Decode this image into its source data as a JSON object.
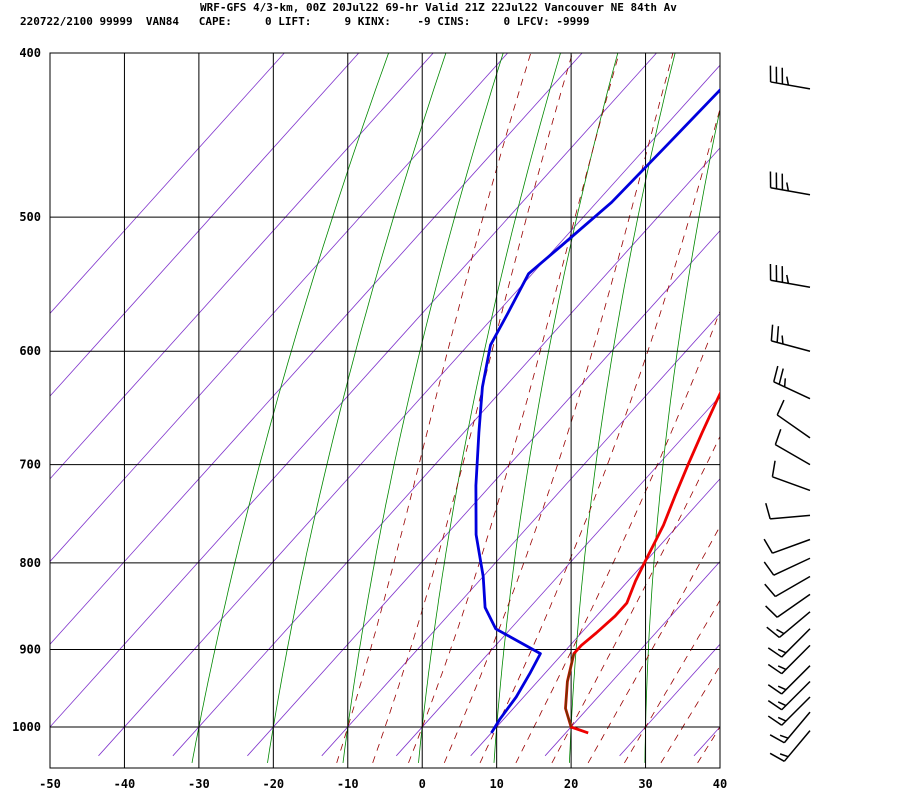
{
  "header": {
    "line1": "WRF-GFS 4/3-km, 00Z 20Jul22 69-hr Valid 21Z 22Jul22 Vancouver NE 84th Av",
    "line2": "220722/2100 99999  VAN84   CAPE:     0 LIFT:     9 KINX:    -9 CINS:     0 LFCV: -9999"
  },
  "chart_data": {
    "type": "line",
    "title": "WRF-GFS 4/3-km, 00Z 20Jul22 69-hr Valid 21Z 22Jul22 Vancouver NE 84th Av",
    "xlabel": "",
    "ylabel": "",
    "xlim": [
      -50,
      40
    ],
    "ylim": [
      1040,
      400
    ],
    "x_ticks": [
      -50,
      -40,
      -30,
      -20,
      -10,
      0,
      10,
      20,
      30,
      40
    ],
    "y_ticks": [
      400,
      500,
      600,
      700,
      800,
      900,
      1000
    ],
    "grid": true,
    "colors": {
      "temperature": "#ee0000",
      "dewpoint": "#0000dd",
      "parcel": "#7a3000",
      "isotherm": "#7f33cc",
      "dry_adiabat": "#008800",
      "moist_adiabat": "#990000",
      "grid": "#000000",
      "wind": "#000000"
    },
    "series": [
      {
        "key": "temperature",
        "points": [
          [
            23,
            1008
          ],
          [
            20,
            1000
          ],
          [
            17,
            975
          ],
          [
            14,
            940
          ],
          [
            11.5,
            905
          ],
          [
            11.5,
            895
          ],
          [
            12,
            880
          ],
          [
            12.5,
            860
          ],
          [
            12.5,
            845
          ],
          [
            11,
            820
          ],
          [
            10,
            800
          ],
          [
            8,
            760
          ],
          [
            6,
            730
          ],
          [
            4,
            700
          ],
          [
            2,
            670
          ],
          [
            0,
            640
          ],
          [
            -2,
            610
          ],
          [
            -3,
            595
          ],
          [
            -5,
            570
          ],
          [
            -8,
            540
          ],
          [
            -10,
            520
          ],
          [
            -12,
            505
          ],
          [
            -15,
            480
          ],
          [
            -18,
            450
          ],
          [
            -21,
            420
          ]
        ]
      },
      {
        "key": "dewpoint",
        "points": [
          [
            10,
            1008
          ],
          [
            9.5,
            990
          ],
          [
            9,
            960
          ],
          [
            8,
            930
          ],
          [
            7,
            905
          ],
          [
            -2,
            875
          ],
          [
            -6,
            850
          ],
          [
            -10,
            815
          ],
          [
            -16,
            770
          ],
          [
            -22,
            720
          ],
          [
            -28,
            670
          ],
          [
            -33,
            630
          ],
          [
            -37,
            595
          ],
          [
            -38.5,
            570
          ],
          [
            -40.5,
            540
          ],
          [
            -39.5,
            520
          ],
          [
            -38,
            490
          ],
          [
            -37.5,
            455
          ],
          [
            -37,
            420
          ]
        ]
      },
      {
        "key": "parcel",
        "points": [
          [
            20,
            1000
          ],
          [
            17,
            975
          ],
          [
            14,
            940
          ],
          [
            11.5,
            905
          ]
        ]
      }
    ],
    "isotherms": [
      -100,
      -90,
      -80,
      -70,
      -60,
      -50,
      -40,
      -30,
      -20,
      -10,
      0,
      10,
      20,
      30,
      40
    ],
    "dry_adiabats_theta_c": [
      -30,
      -20,
      -10,
      0,
      10,
      20,
      30,
      40,
      50,
      60,
      70,
      80,
      90,
      100
    ],
    "moist_adiabats_c": [
      -10,
      -5,
      0,
      5,
      10,
      15,
      20,
      25,
      30,
      35,
      40,
      45
    ],
    "wind_profile": [
      {
        "p": 1005,
        "dir": 220,
        "spd": 15
      },
      {
        "p": 980,
        "dir": 220,
        "spd": 15
      },
      {
        "p": 960,
        "dir": 225,
        "spd": 15
      },
      {
        "p": 940,
        "dir": 225,
        "spd": 15
      },
      {
        "p": 920,
        "dir": 225,
        "spd": 15
      },
      {
        "p": 895,
        "dir": 225,
        "spd": 15
      },
      {
        "p": 875,
        "dir": 225,
        "spd": 15
      },
      {
        "p": 855,
        "dir": 230,
        "spd": 15
      },
      {
        "p": 835,
        "dir": 235,
        "spd": 10
      },
      {
        "p": 815,
        "dir": 240,
        "spd": 10
      },
      {
        "p": 795,
        "dir": 245,
        "spd": 10
      },
      {
        "p": 775,
        "dir": 250,
        "spd": 10
      },
      {
        "p": 750,
        "dir": 265,
        "spd": 10
      },
      {
        "p": 725,
        "dir": 290,
        "spd": 10
      },
      {
        "p": 700,
        "dir": 300,
        "spd": 10
      },
      {
        "p": 675,
        "dir": 305,
        "spd": 10
      },
      {
        "p": 640,
        "dir": 295,
        "spd": 25
      },
      {
        "p": 600,
        "dir": 285,
        "spd": 25
      },
      {
        "p": 550,
        "dir": 280,
        "spd": 35
      },
      {
        "p": 485,
        "dir": 280,
        "spd": 35
      },
      {
        "p": 420,
        "dir": 280,
        "spd": 35
      }
    ]
  }
}
